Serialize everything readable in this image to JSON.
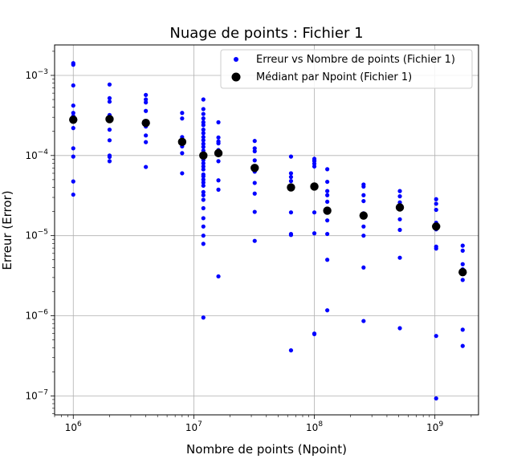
{
  "chart_data": {
    "type": "scatter",
    "title": "Nuage de points : Fichier 1",
    "xlabel": "Nombre de points (Npoint)",
    "ylabel": "Erreur (Error)",
    "xscale": "log",
    "yscale": "log",
    "xlim": [
      700000,
      2300000000
    ],
    "ylim": [
      5.8e-08,
      0.0024
    ],
    "grid": true,
    "legend_position": "top-right",
    "x_ticks": [
      {
        "value": 1000000,
        "base": "10",
        "exp": "6"
      },
      {
        "value": 10000000,
        "base": "10",
        "exp": "7"
      },
      {
        "value": 100000000,
        "base": "10",
        "exp": "8"
      },
      {
        "value": 1000000000,
        "base": "10",
        "exp": "9"
      }
    ],
    "y_ticks": [
      {
        "value": 1e-07,
        "base": "10",
        "exp": "−7"
      },
      {
        "value": 1e-06,
        "base": "10",
        "exp": "−6"
      },
      {
        "value": 1e-05,
        "base": "10",
        "exp": "−5"
      },
      {
        "value": 0.0001,
        "base": "10",
        "exp": "−4"
      },
      {
        "value": 0.001,
        "base": "10",
        "exp": "−3"
      }
    ],
    "series": [
      {
        "name": "Erreur vs Nombre de points (Fichier 1)",
        "color": "#0000ff",
        "marker": "small-dot",
        "points": [
          [
            1000000,
            0.00142
          ],
          [
            1000000,
            0.00136
          ],
          [
            1000000,
            0.00075
          ],
          [
            1000000,
            0.00042
          ],
          [
            1000000,
            0.00034
          ],
          [
            1000000,
            0.00031
          ],
          [
            1000000,
            0.00027
          ],
          [
            1000000,
            0.00022
          ],
          [
            1000000,
            0.000123
          ],
          [
            1000000,
            9.7e-05
          ],
          [
            1000000,
            4.75e-05
          ],
          [
            1000000,
            3.25e-05
          ],
          [
            2000000,
            0.00077
          ],
          [
            2000000,
            0.00052
          ],
          [
            2000000,
            0.00047
          ],
          [
            2000000,
            0.00032
          ],
          [
            2000000,
            0.00029
          ],
          [
            2000000,
            0.00021
          ],
          [
            2000000,
            0.000155
          ],
          [
            2000000,
            0.0001
          ],
          [
            2000000,
            9.6e-05
          ],
          [
            2000000,
            8.5e-05
          ],
          [
            4000000,
            0.00057
          ],
          [
            4000000,
            0.0005
          ],
          [
            4000000,
            0.00046
          ],
          [
            4000000,
            0.00036
          ],
          [
            4000000,
            0.00023
          ],
          [
            4000000,
            0.000178
          ],
          [
            4000000,
            0.000147
          ],
          [
            4000000,
            7.2e-05
          ],
          [
            8000000,
            0.00034
          ],
          [
            8000000,
            0.00029
          ],
          [
            8000000,
            0.00017
          ],
          [
            8000000,
            0.000155
          ],
          [
            8000000,
            0.00013
          ],
          [
            8000000,
            0.000107
          ],
          [
            8000000,
            6e-05
          ],
          [
            12000000,
            0.0005
          ],
          [
            12000000,
            0.00038
          ],
          [
            12000000,
            0.00033
          ],
          [
            12000000,
            0.00029
          ],
          [
            12000000,
            0.00026
          ],
          [
            12000000,
            0.00024
          ],
          [
            12000000,
            0.00021
          ],
          [
            12000000,
            0.00019
          ],
          [
            12000000,
            0.00017
          ],
          [
            12000000,
            0.000155
          ],
          [
            12000000,
            0.00014
          ],
          [
            12000000,
            0.000128
          ],
          [
            12000000,
            0.000115
          ],
          [
            12000000,
            0.000105
          ],
          [
            12000000,
            9.7e-05
          ],
          [
            12000000,
            8.8e-05
          ],
          [
            12000000,
            8e-05
          ],
          [
            12000000,
            7.3e-05
          ],
          [
            12000000,
            6.7e-05
          ],
          [
            12000000,
            5.8e-05
          ],
          [
            12000000,
            5.5e-05
          ],
          [
            12000000,
            5e-05
          ],
          [
            12000000,
            4.6e-05
          ],
          [
            12000000,
            4.2e-05
          ],
          [
            12000000,
            3.5e-05
          ],
          [
            12000000,
            3.2e-05
          ],
          [
            12000000,
            2.8e-05
          ],
          [
            12000000,
            2.2e-05
          ],
          [
            12000000,
            1.65e-05
          ],
          [
            12000000,
            1.3e-05
          ],
          [
            12000000,
            1e-05
          ],
          [
            12000000,
            7.9e-06
          ],
          [
            12000000,
            9.5e-07
          ],
          [
            16000000,
            0.00026
          ],
          [
            16000000,
            0.000168
          ],
          [
            16000000,
            0.00015
          ],
          [
            16000000,
            0.000142
          ],
          [
            16000000,
            0.000117
          ],
          [
            16000000,
            8.5e-05
          ],
          [
            16000000,
            4.9e-05
          ],
          [
            16000000,
            3.75e-05
          ],
          [
            16000000,
            3.1e-06
          ],
          [
            32000000,
            0.000152
          ],
          [
            32000000,
            0.000123
          ],
          [
            32000000,
            0.000113
          ],
          [
            32000000,
            8.7e-05
          ],
          [
            32000000,
            6.5e-05
          ],
          [
            32000000,
            6.3e-05
          ],
          [
            32000000,
            4.55e-05
          ],
          [
            32000000,
            3.35e-05
          ],
          [
            32000000,
            1.98e-05
          ],
          [
            32000000,
            8.6e-06
          ],
          [
            64000000,
            9.7e-05
          ],
          [
            64000000,
            6e-05
          ],
          [
            64000000,
            5.4e-05
          ],
          [
            64000000,
            4.8e-05
          ],
          [
            64000000,
            1.95e-05
          ],
          [
            64000000,
            1.05e-05
          ],
          [
            64000000,
            1.02e-05
          ],
          [
            64000000,
            3.7e-07
          ],
          [
            100000000,
            9.1e-05
          ],
          [
            100000000,
            8.7e-05
          ],
          [
            100000000,
            8.5e-05
          ],
          [
            100000000,
            7.9e-05
          ],
          [
            100000000,
            7.3e-05
          ],
          [
            100000000,
            1.95e-05
          ],
          [
            100000000,
            1.07e-05
          ],
          [
            100000000,
            6e-07
          ],
          [
            100000000,
            5.9e-07
          ],
          [
            128000000,
            6.75e-05
          ],
          [
            128000000,
            4.7e-05
          ],
          [
            128000000,
            3.6e-05
          ],
          [
            128000000,
            3.2e-05
          ],
          [
            128000000,
            2.65e-05
          ],
          [
            128000000,
            2.1e-05
          ],
          [
            128000000,
            1.55e-05
          ],
          [
            128000000,
            1.05e-05
          ],
          [
            128000000,
            5e-06
          ],
          [
            128000000,
            1.17e-06
          ],
          [
            256000000,
            4.35e-05
          ],
          [
            256000000,
            4.1e-05
          ],
          [
            256000000,
            3.2e-05
          ],
          [
            256000000,
            2.7e-05
          ],
          [
            256000000,
            1.9e-05
          ],
          [
            256000000,
            1.3e-05
          ],
          [
            256000000,
            1e-05
          ],
          [
            256000000,
            4e-06
          ],
          [
            256000000,
            8.6e-07
          ],
          [
            512000000,
            3.6e-05
          ],
          [
            512000000,
            3.1e-05
          ],
          [
            512000000,
            2.6e-05
          ],
          [
            512000000,
            2.3e-05
          ],
          [
            512000000,
            1.6e-05
          ],
          [
            512000000,
            1.18e-05
          ],
          [
            512000000,
            5.3e-06
          ],
          [
            512000000,
            7e-07
          ],
          [
            1024000000,
            2.85e-05
          ],
          [
            1024000000,
            2.5e-05
          ],
          [
            1024000000,
            2.1e-05
          ],
          [
            1024000000,
            1.45e-05
          ],
          [
            1024000000,
            1.2e-05
          ],
          [
            1024000000,
            7.3e-06
          ],
          [
            1024000000,
            6.9e-06
          ],
          [
            1024000000,
            5.6e-07
          ],
          [
            1024000000,
            9.3e-08
          ],
          [
            1700000000,
            7.5e-06
          ],
          [
            1700000000,
            6.5e-06
          ],
          [
            1700000000,
            4.4e-06
          ],
          [
            1700000000,
            3.8e-06
          ],
          [
            1700000000,
            2.8e-06
          ],
          [
            1700000000,
            6.7e-07
          ],
          [
            1700000000,
            4.2e-07
          ]
        ]
      },
      {
        "name": "Médiant par Npoint (Fichier 1)",
        "color": "#000000",
        "marker": "large-dot",
        "points": [
          [
            1000000,
            0.00028
          ],
          [
            2000000,
            0.000285
          ],
          [
            4000000,
            0.000255
          ],
          [
            8000000,
            0.000148
          ],
          [
            12000000,
            0.0001
          ],
          [
            16000000,
            0.000107
          ],
          [
            32000000,
            7e-05
          ],
          [
            64000000,
            4e-05
          ],
          [
            100000000,
            4.1e-05
          ],
          [
            128000000,
            2.05e-05
          ],
          [
            256000000,
            1.78e-05
          ],
          [
            512000000,
            2.25e-05
          ],
          [
            1024000000,
            1.3e-05
          ],
          [
            1700000000,
            3.5e-06
          ]
        ]
      }
    ]
  }
}
